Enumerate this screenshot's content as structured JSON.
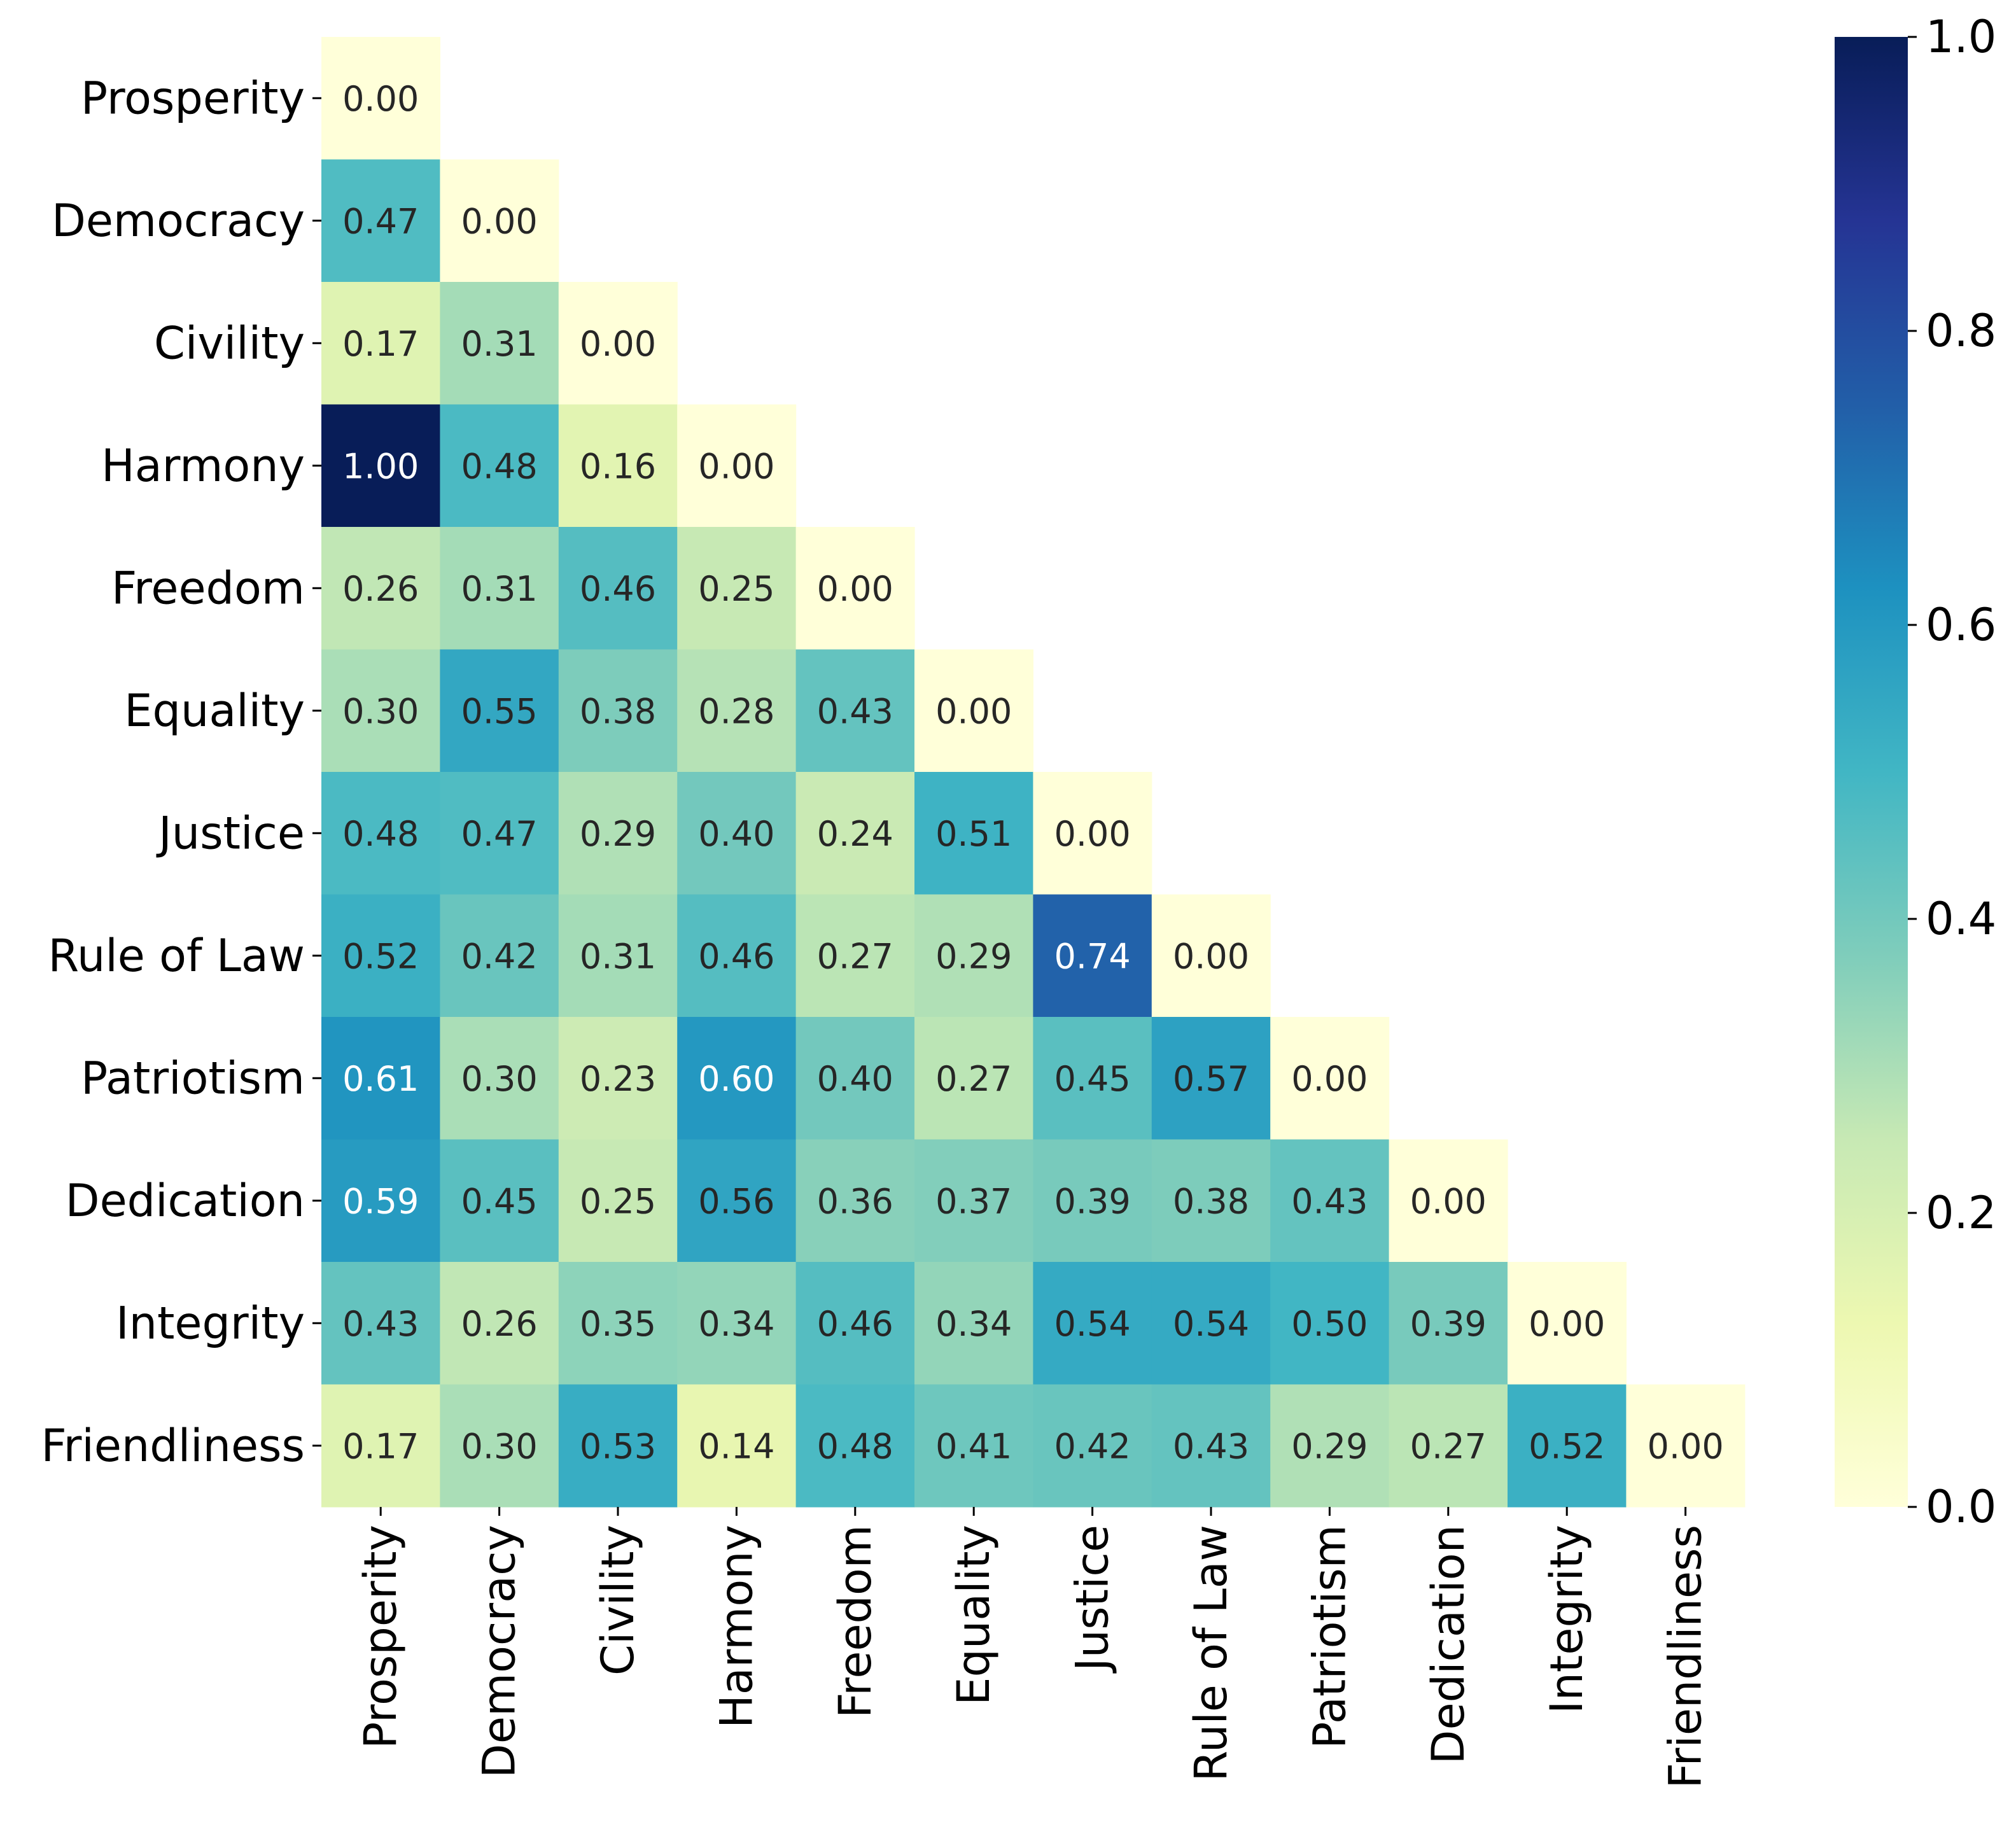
{
  "chart_data": {
    "type": "heatmap",
    "title": "",
    "xlabel": "",
    "ylabel": "",
    "categories": [
      "Prosperity",
      "Democracy",
      "Civility",
      "Harmony",
      "Freedom",
      "Equality",
      "Justice",
      "Rule of Law",
      "Patriotism",
      "Dedication",
      "Integrity",
      "Friendliness"
    ],
    "matrix": [
      [
        0.0
      ],
      [
        0.47,
        0.0
      ],
      [
        0.17,
        0.31,
        0.0
      ],
      [
        1.0,
        0.48,
        0.16,
        0.0
      ],
      [
        0.26,
        0.31,
        0.46,
        0.25,
        0.0
      ],
      [
        0.3,
        0.55,
        0.38,
        0.28,
        0.43,
        0.0
      ],
      [
        0.48,
        0.47,
        0.29,
        0.4,
        0.24,
        0.51,
        0.0
      ],
      [
        0.52,
        0.42,
        0.31,
        0.46,
        0.27,
        0.29,
        0.74,
        0.0
      ],
      [
        0.61,
        0.3,
        0.23,
        0.6,
        0.4,
        0.27,
        0.45,
        0.57,
        0.0
      ],
      [
        0.59,
        0.45,
        0.25,
        0.56,
        0.36,
        0.37,
        0.39,
        0.38,
        0.43,
        0.0
      ],
      [
        0.43,
        0.26,
        0.35,
        0.34,
        0.46,
        0.34,
        0.54,
        0.54,
        0.5,
        0.39,
        0.0
      ],
      [
        0.17,
        0.3,
        0.53,
        0.14,
        0.48,
        0.41,
        0.42,
        0.43,
        0.29,
        0.27,
        0.52,
        0.0
      ]
    ],
    "annotation_format": "0.00",
    "mask": "upper triangle",
    "colormap": "YlGnBu",
    "colorbar": {
      "range": [
        0.0,
        1.0
      ],
      "ticks": [
        0.0,
        0.2,
        0.4,
        0.6,
        0.8,
        1.0
      ],
      "tick_labels": [
        "0.0",
        "0.2",
        "0.4",
        "0.6",
        "0.8",
        "1.0"
      ]
    }
  }
}
